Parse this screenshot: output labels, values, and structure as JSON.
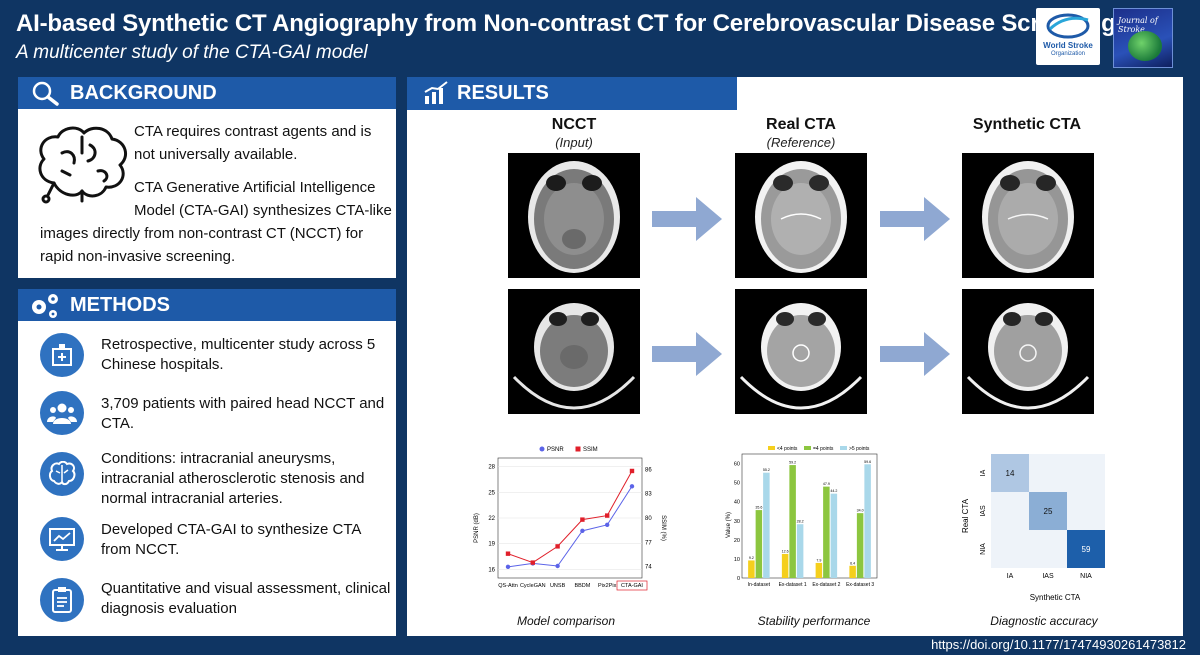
{
  "header": {
    "title": "AI-based Synthetic CT Angiography from Non-contrast CT for Cerebrovascular Disease Screening",
    "subtitle": "A multicenter study of the CTA-GAI model",
    "logo_org_line1": "World Stroke",
    "logo_org_line2": "Organization",
    "journal_logo_text": "Journal of Stroke"
  },
  "background": {
    "heading": "BACKGROUND",
    "p1_line1": "CTA requires contrast agents and is",
    "p1_line2": "not universally available.",
    "p2_line1": "CTA Generative Artificial Intelligence",
    "p2_line2": "Model (CTA-GAI) synthesizes CTA-like",
    "p2_line3": "images directly from non-contrast CT (NCCT) for",
    "p2_line4": "rapid non-invasive screening."
  },
  "methods": {
    "heading": "METHODS",
    "items": [
      {
        "icon": "hospital-icon",
        "text": "Retrospective, multicenter study across 5 Chinese hospitals."
      },
      {
        "icon": "patients-icon",
        "text": "3,709 patients with paired head NCCT and CTA."
      },
      {
        "icon": "brain-icon",
        "text": "Conditions: intracranial aneurysms, intracranial atherosclerotic stenosis and normal intracranial arteries."
      },
      {
        "icon": "monitor-chart-icon",
        "text": "Developed CTA-GAI to synthesize CTA from NCCT."
      },
      {
        "icon": "clipboard-icon",
        "text": "Quantitative and visual assessment, clinical diagnosis evaluation"
      }
    ]
  },
  "results": {
    "heading": "RESULTS",
    "columns": [
      {
        "title": "NCCT",
        "sub": "(Input)"
      },
      {
        "title": "Real CTA",
        "sub": "(Reference)"
      },
      {
        "title": "Synthetic CTA",
        "sub": ""
      }
    ],
    "captions": {
      "model": "Model comparison",
      "stability": "Stability performance",
      "diagnostic": "Diagnostic accuracy"
    }
  },
  "chart_data": [
    {
      "type": "line",
      "categories": [
        "QS-Attn",
        "CycleGAN",
        "UNSB",
        "BBDM",
        "Pix2Pix",
        "CTA-GAI"
      ],
      "series": [
        {
          "name": "PSNR",
          "values": [
            16.3,
            16.7,
            16.4,
            20.5,
            21.2,
            25.7
          ],
          "axis": "left"
        },
        {
          "name": "SSIM",
          "values": [
            75.6,
            74.5,
            76.5,
            79.8,
            80.3,
            85.8
          ],
          "axis": "right"
        }
      ],
      "ylabel": "PSNR (dB)",
      "y2label": "SSIM (%)",
      "yticks": [
        16,
        19,
        22,
        25,
        28
      ],
      "y2ticks": [
        74,
        77,
        80,
        83,
        86
      ],
      "ylim": [
        15,
        29
      ],
      "y2lim": [
        72.6,
        87.4
      ],
      "colors": {
        "PSNR": "#5b63e8",
        "SSIM": "#e01f2a"
      },
      "highlight_category": "CTA-GAI",
      "legend": "top"
    },
    {
      "type": "bar",
      "categories": [
        "In-dataset",
        "Ex-dataset 1",
        "Ex-dataset 2",
        "Ex-dataset 3"
      ],
      "series": [
        {
          "name": "<4 points",
          "values": [
            9.2,
            12.6,
            7.9,
            6.4
          ]
        },
        {
          "name": "=4 points",
          "values": [
            35.6,
            59.2,
            47.9,
            34.0
          ]
        },
        {
          "name": ">5 points",
          "values": [
            55.2,
            28.2,
            44.2,
            59.6
          ]
        }
      ],
      "ylabel": "Value (%)",
      "yticks": [
        0,
        10,
        20,
        30,
        40,
        50,
        60
      ],
      "ylim": [
        0,
        65
      ],
      "colors": {
        "<4 points": "#f5cf1d",
        "=4 points": "#8cc63f",
        ">5 points": "#a9d8ea"
      },
      "legend": "top"
    },
    {
      "type": "heatmap",
      "rows": [
        "IA",
        "IAS",
        "NIA"
      ],
      "cols": [
        "IA",
        "IAS",
        "NIA"
      ],
      "values": [
        [
          14,
          null,
          null
        ],
        [
          null,
          25,
          null
        ],
        [
          null,
          null,
          59
        ]
      ],
      "ylabel": "Real CTA",
      "xlabel": "Synthetic CTA"
    }
  ],
  "footer": {
    "doi": "https://doi.org/10.1177/17474930261473812"
  }
}
